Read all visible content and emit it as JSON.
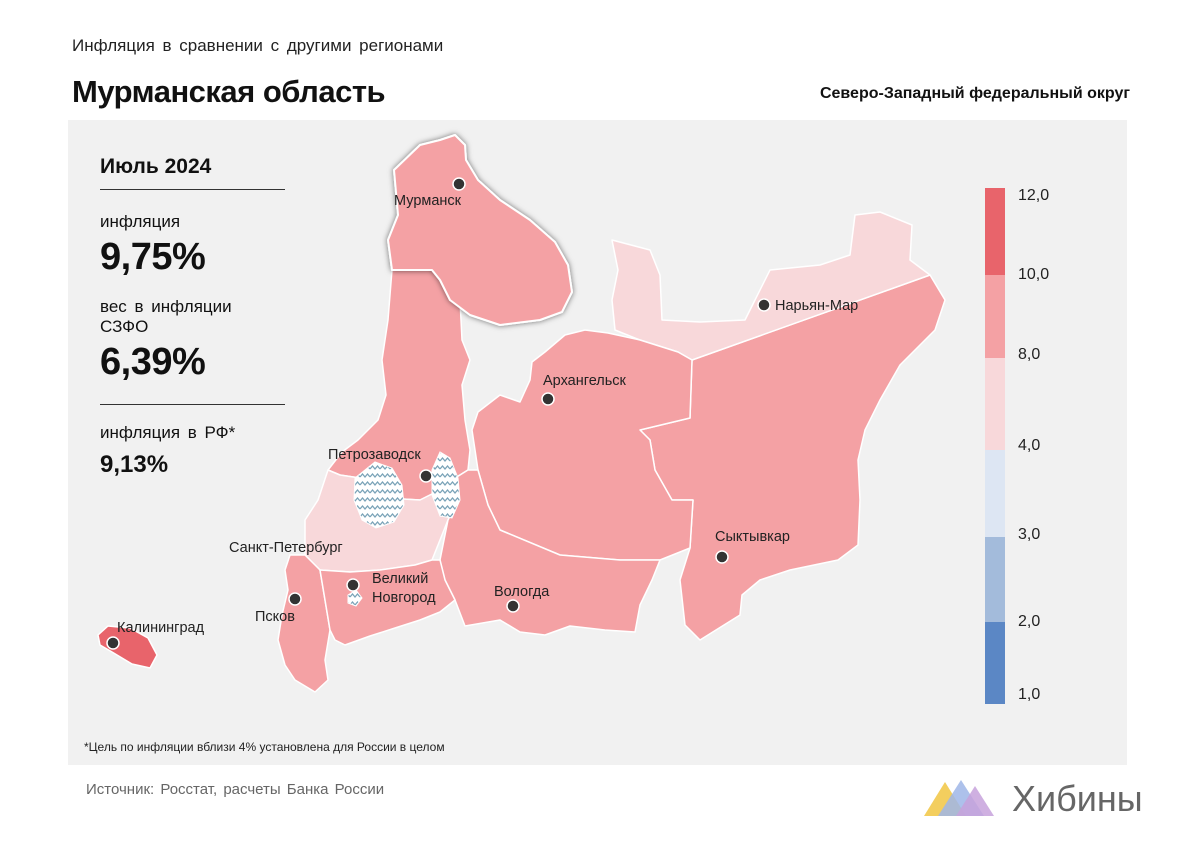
{
  "header": {
    "subtitle": "Инфляция в сравнении с другими регионами",
    "title": "Мурманская область",
    "district": "Северо-Западный федеральный округ"
  },
  "stats": {
    "period": "Июль 2024",
    "inflation_label": "инфляция",
    "inflation_value": "9,75%",
    "weight_label": "вес в инфляции СЗФО",
    "weight_value": "6,39%",
    "russia_label": "инфляция в РФ*",
    "russia_value": "9,13%"
  },
  "cities": {
    "murmansk": "Мурманск",
    "naryan_mar": "Нарьян-Мар",
    "arkhangelsk": "Архангельск",
    "petrozavodsk": "Петрозаводск",
    "saint_petersburg": "Санкт-Петербург",
    "veliky_novgorod_1": "Великий",
    "veliky_novgorod_2": "Новгород",
    "vologda": "Вологда",
    "syktyvkar": "Сыктывкар",
    "pskov": "Псков",
    "kaliningrad": "Калининград"
  },
  "legend": {
    "ticks": [
      "12,0",
      "10,0",
      "8,0",
      "4,0",
      "3,0",
      "2,0",
      "1,0"
    ],
    "colors": [
      "#e8646b",
      "#f4a1a4",
      "#f8d8da",
      "#dde6f3",
      "#a3bbdb",
      "#5b87c5"
    ]
  },
  "map_colors": {
    "highest": "#e8646b",
    "high": "#f4a1a4",
    "moderate": "#f8d8da",
    "water": "#7aa3b8"
  },
  "footnote": "*Цель по инфляции вблизи 4% установлена для России в целом",
  "source": "Источник: Росстат, расчеты Банка России",
  "brand": {
    "name": "Хибины",
    "colors": [
      "#f2c94c",
      "#9fb6e8",
      "#c7a2dc"
    ]
  }
}
